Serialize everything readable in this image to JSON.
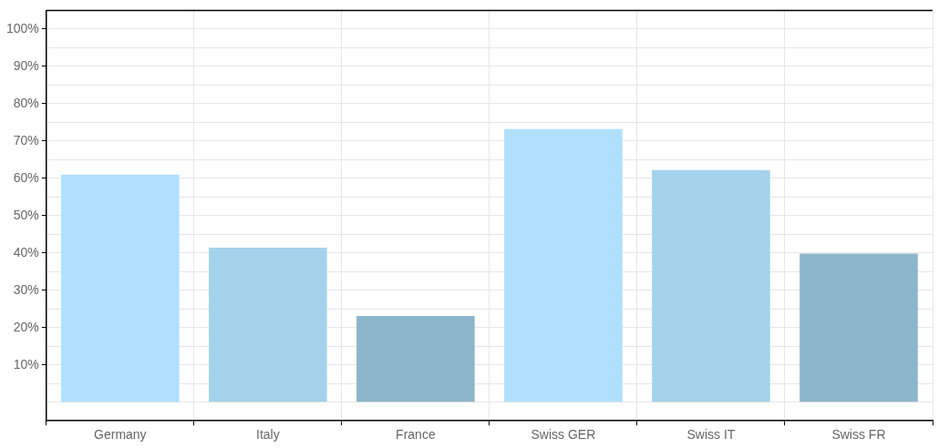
{
  "chart_data": {
    "type": "bar",
    "categories": [
      "Germany",
      "Italy",
      "France",
      "Swiss GER",
      "Swiss IT",
      "Swiss FR"
    ],
    "values": [
      61,
      41.4,
      23.1,
      73.2,
      62.2,
      39.8
    ],
    "colors": [
      "#b0e0fd",
      "#a4d2eb",
      "#8db5cb",
      "#b0e0fd",
      "#a4d2eb",
      "#8db5cb"
    ],
    "ylim": [
      -5,
      105
    ],
    "yticks": [
      {
        "value": 0,
        "label": null
      },
      {
        "value": 5,
        "label": null
      },
      {
        "value": 10,
        "label": "10%"
      },
      {
        "value": 15,
        "label": null
      },
      {
        "value": 20,
        "label": "20%"
      },
      {
        "value": 25,
        "label": null
      },
      {
        "value": 30,
        "label": "30%"
      },
      {
        "value": 35,
        "label": null
      },
      {
        "value": 40,
        "label": "40%"
      },
      {
        "value": 45,
        "label": null
      },
      {
        "value": 50,
        "label": "50%"
      },
      {
        "value": 55,
        "label": null
      },
      {
        "value": 60,
        "label": "60%"
      },
      {
        "value": 65,
        "label": null
      },
      {
        "value": 70,
        "label": "70%"
      },
      {
        "value": 75,
        "label": null
      },
      {
        "value": 80,
        "label": "80%"
      },
      {
        "value": 85,
        "label": null
      },
      {
        "value": 90,
        "label": "90%"
      },
      {
        "value": 95,
        "label": null
      },
      {
        "value": 100,
        "label": "100%"
      }
    ],
    "grid": true,
    "legend": false
  }
}
